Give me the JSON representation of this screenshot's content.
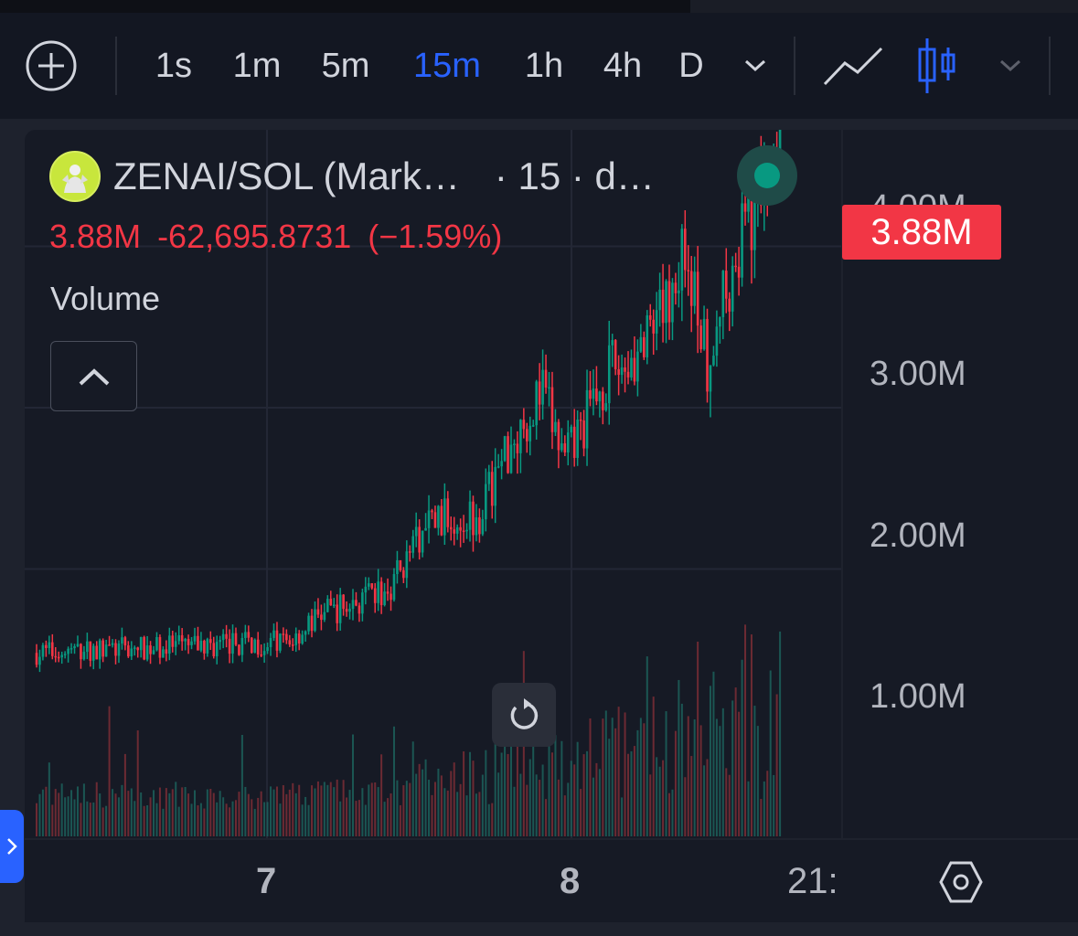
{
  "toolbar": {
    "add_icon": "plus-circle-icon",
    "intervals": [
      "1s",
      "1m",
      "5m",
      "15m",
      "1h",
      "4h",
      "D"
    ],
    "active_interval": "15m",
    "interval_menu_icon": "chevron-down-icon",
    "chart_type_line_icon": "line-chart-icon",
    "chart_type_candle_icon": "candlestick-icon",
    "chart_type_menu_icon": "chevron-down-icon"
  },
  "legend": {
    "symbol": "ZENAI/SOL (Mark…",
    "interval_text": "· 15 · d…",
    "status": "live",
    "last": "3.88M",
    "change": "-62,695.8731",
    "change_pct": "(−1.59%)",
    "volume_label": "Volume"
  },
  "price_scale": {
    "ticks": [
      "4.00M",
      "3.00M",
      "2.00M",
      "1.00M"
    ],
    "last_price_label": "3.88M"
  },
  "time_axis": {
    "ticks": [
      "7",
      "8",
      "21:"
    ]
  },
  "colors": {
    "up": "#089981",
    "down": "#f23645",
    "accent": "#2962ff",
    "background": "#161a25"
  },
  "chart_data": {
    "type": "candlestick",
    "series": [
      {
        "name": "ZENAI/SOL",
        "seed": 7,
        "anchors": [
          [
            0,
            0.48
          ],
          [
            80,
            0.55
          ],
          [
            90,
            0.72
          ],
          [
            110,
            0.85
          ],
          [
            125,
            1.3
          ],
          [
            140,
            1.35
          ],
          [
            150,
            1.8
          ],
          [
            160,
            2.1
          ],
          [
            167,
            1.65
          ],
          [
            180,
            2.2
          ],
          [
            195,
            2.4
          ],
          [
            205,
            3.0
          ],
          [
            212,
            2.3
          ],
          [
            220,
            2.9
          ],
          [
            228,
            3.3
          ],
          [
            235,
            3.88
          ]
        ]
      },
      {
        "name": "Volume"
      }
    ],
    "x_ticks": [
      "7",
      "8",
      "21:"
    ],
    "y_ticks": [
      "1.00M",
      "2.00M",
      "3.00M",
      "4.00M"
    ],
    "last_price": 3.88
  }
}
